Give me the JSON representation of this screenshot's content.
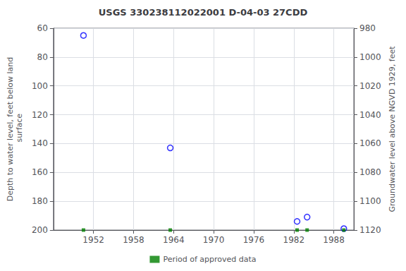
{
  "chart_data": {
    "type": "scatter",
    "title": "USGS 330238112022001 D-04-03 27CDD",
    "ylabel": "Depth to water level, feet below land\n surface",
    "y2label": "Groundwater level above NGVD 1929, feet",
    "xlim": [
      1946,
      1991
    ],
    "xticks": [
      1952,
      1958,
      1964,
      1970,
      1976,
      1982,
      1988
    ],
    "ylim": [
      200,
      60
    ],
    "yticks": [
      60,
      80,
      100,
      120,
      140,
      160,
      180,
      200
    ],
    "y2lim": [
      1120,
      980
    ],
    "y2ticks": [
      1120,
      1100,
      1080,
      1060,
      1040,
      1020,
      1000,
      980
    ],
    "grid": true,
    "legend": "bottom",
    "series": [
      {
        "color": "#0000ff",
        "marker": "open_circle",
        "x": [
          1950.5,
          1963.5,
          1982.5,
          1984.0,
          1989.5
        ],
        "values": [
          65,
          143,
          194,
          191,
          199
        ]
      },
      {
        "name": "Period of approved data",
        "color": "#008000",
        "marker": "square",
        "x": [
          1950.5,
          1963.5,
          1982.5,
          1984.0,
          1989.5
        ],
        "values": [
          200,
          200,
          200,
          200,
          200
        ]
      }
    ]
  }
}
